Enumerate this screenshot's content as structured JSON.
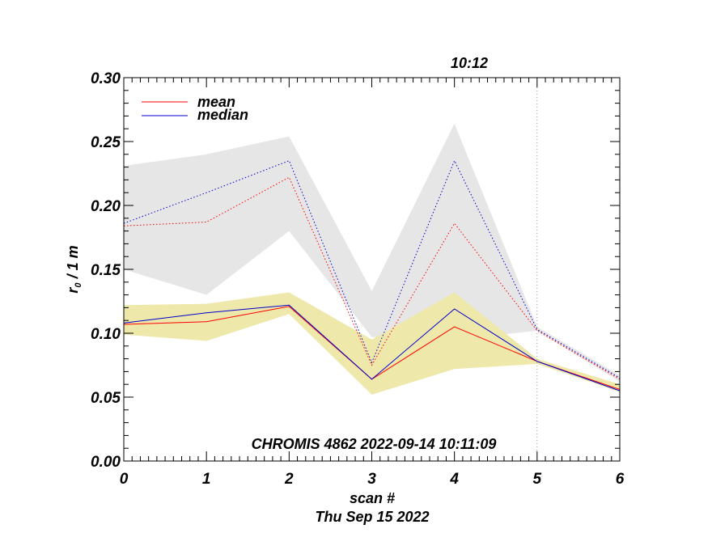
{
  "chart_data": {
    "type": "line",
    "title_top": "10:12",
    "annotation": "CHROMIS 4862 2022-09-14 10:11:09",
    "xlabel": "scan #",
    "date_label": "Thu Sep 15 2022",
    "ylabel_main": "r",
    "ylabel_sub": "0",
    "ylabel_tail": " / 1 m",
    "xlim": [
      0,
      6
    ],
    "ylim": [
      0,
      0.3
    ],
    "x_ticks": [
      "0",
      "1",
      "2",
      "3",
      "4",
      "5",
      "6"
    ],
    "y_ticks": [
      "0.00",
      "0.05",
      "0.10",
      "0.15",
      "0.20",
      "0.25",
      "0.30"
    ],
    "marker_x": 5,
    "legend": [
      {
        "name": "mean",
        "color": "#ff0000"
      },
      {
        "name": "median",
        "color": "#0000cc"
      }
    ],
    "x": [
      0,
      1,
      2,
      3,
      4,
      5,
      6
    ],
    "bands": [
      {
        "name": "upper-range",
        "color": "#e6e6e6",
        "upper": [
          0.231,
          0.24,
          0.254,
          0.133,
          0.264,
          0.105,
          0.067
        ],
        "lower": [
          0.15,
          0.13,
          0.18,
          0.097,
          0.095,
          0.102,
          0.062
        ]
      },
      {
        "name": "lower-range",
        "color": "#eee8aa",
        "upper": [
          0.122,
          0.123,
          0.132,
          0.095,
          0.132,
          0.08,
          0.06
        ],
        "lower": [
          0.099,
          0.094,
          0.115,
          0.052,
          0.072,
          0.076,
          0.054
        ]
      }
    ],
    "series": [
      {
        "name": "mean-high",
        "color": "#ff0000",
        "style": "dotted",
        "values": [
          0.184,
          0.187,
          0.222,
          0.075,
          0.186,
          0.102,
          0.064
        ]
      },
      {
        "name": "median-high",
        "color": "#0000cc",
        "style": "dotted",
        "values": [
          0.186,
          0.21,
          0.235,
          0.077,
          0.235,
          0.103,
          0.065
        ]
      },
      {
        "name": "mean-low",
        "color": "#ff0000",
        "style": "solid",
        "values": [
          0.107,
          0.109,
          0.121,
          0.064,
          0.105,
          0.078,
          0.056
        ]
      },
      {
        "name": "median-low",
        "color": "#0000cc",
        "style": "solid",
        "values": [
          0.108,
          0.116,
          0.122,
          0.064,
          0.119,
          0.078,
          0.055
        ]
      }
    ]
  }
}
